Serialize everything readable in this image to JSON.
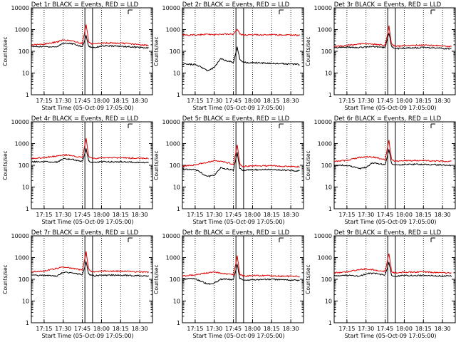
{
  "figure": {
    "colors": {
      "events": "#000000",
      "lld": "#e00000",
      "axis": "#000000",
      "background": "#ffffff"
    }
  },
  "chart_data": [
    {
      "type": "line",
      "title": "Det 1r BLACK = Events, RED = LLD",
      "ylabel": "Counts/sec",
      "xlabel": "Start Time (05-Oct-09 17:05:00)",
      "x_tick_labels": [
        "17:15",
        "17:30",
        "17:45",
        "18:00",
        "18:15",
        "18:30"
      ],
      "y_tick_labels": [
        "1",
        "10",
        "100",
        "1000",
        "10000"
      ],
      "y_scale": "log",
      "ylim": [
        1,
        10000
      ],
      "x": [
        "17:05",
        "17:14",
        "17:25",
        "17:30",
        "17:35",
        "17:39",
        "17:45",
        "17:48",
        "17:50",
        "17:52",
        "17:55",
        "18:00",
        "18:10",
        "18:20",
        "18:30",
        "18:37"
      ],
      "series": [
        {
          "name": "Events",
          "color": "#000000",
          "values": [
            165,
            165,
            160,
            240,
            230,
            210,
            160,
            520,
            170,
            155,
            150,
            175,
            175,
            165,
            150,
            140
          ]
        },
        {
          "name": "LLD",
          "color": "#e00000",
          "values": [
            195,
            210,
            270,
            330,
            310,
            280,
            230,
            1800,
            270,
            220,
            210,
            240,
            240,
            230,
            200,
            190
          ]
        }
      ]
    },
    {
      "type": "line",
      "title": "Det 2r BLACK = Events, RED = LLD",
      "ylabel": "Counts/sec",
      "xlabel": "Start Time (05-Oct-09 17:05:00)",
      "x_tick_labels": [
        "17:15",
        "17:30",
        "17:45",
        "18:00",
        "18:15",
        "18:30"
      ],
      "y_tick_labels": [
        "1",
        "10",
        "100",
        "1000",
        "10000"
      ],
      "y_scale": "log",
      "ylim": [
        1,
        10000
      ],
      "x": [
        "17:05",
        "17:15",
        "17:25",
        "17:30",
        "17:35",
        "17:39",
        "17:45",
        "17:48",
        "17:50",
        "17:52",
        "17:55",
        "18:00",
        "18:15",
        "18:37"
      ],
      "series": [
        {
          "name": "Events",
          "color": "#000000",
          "values": [
            25,
            25,
            13,
            18,
            45,
            38,
            30,
            160,
            45,
            32,
            30,
            30,
            28,
            25
          ]
        },
        {
          "name": "LLD",
          "color": "#e00000",
          "values": [
            550,
            570,
            600,
            580,
            590,
            620,
            600,
            1000,
            640,
            580,
            560,
            580,
            570,
            550
          ]
        }
      ]
    },
    {
      "type": "line",
      "title": "Det 3r BLACK = Events, RED = LLD",
      "ylabel": "Counts/sec",
      "xlabel": "Start Time (05-Oct-09 17:05:00)",
      "x_tick_labels": [
        "17:15",
        "17:30",
        "17:45",
        "18:00",
        "18:15",
        "18:30"
      ],
      "y_tick_labels": [
        "1",
        "10",
        "100",
        "1000",
        "10000"
      ],
      "y_scale": "log",
      "ylim": [
        1,
        10000
      ],
      "x": [
        "17:05",
        "17:15",
        "17:25",
        "17:30",
        "17:35",
        "17:39",
        "17:45",
        "17:48",
        "17:50",
        "17:52",
        "17:55",
        "18:00",
        "18:15",
        "18:37"
      ],
      "series": [
        {
          "name": "Events",
          "color": "#000000",
          "values": [
            150,
            155,
            150,
            160,
            165,
            160,
            150,
            700,
            170,
            140,
            135,
            140,
            150,
            130
          ]
        },
        {
          "name": "LLD",
          "color": "#e00000",
          "values": [
            165,
            185,
            220,
            225,
            215,
            200,
            190,
            1500,
            220,
            175,
            170,
            185,
            195,
            165
          ]
        }
      ]
    },
    {
      "type": "line",
      "title": "Det 4r BLACK = Events, RED = LLD",
      "ylabel": "Counts/sec",
      "xlabel": "Start Time (05-Oct-09 17:05:00)",
      "x_tick_labels": [
        "17:15",
        "17:30",
        "17:45",
        "18:00",
        "18:15",
        "18:30"
      ],
      "y_tick_labels": [
        "1",
        "10",
        "100",
        "1000",
        "10000"
      ],
      "y_scale": "log",
      "ylim": [
        1,
        10000
      ],
      "x": [
        "17:05",
        "17:15",
        "17:25",
        "17:30",
        "17:35",
        "17:39",
        "17:45",
        "17:48",
        "17:50",
        "17:52",
        "17:55",
        "18:00",
        "18:15",
        "18:37"
      ],
      "series": [
        {
          "name": "Events",
          "color": "#000000",
          "values": [
            145,
            145,
            140,
            200,
            190,
            180,
            150,
            560,
            160,
            140,
            135,
            145,
            145,
            130
          ]
        },
        {
          "name": "LLD",
          "color": "#e00000",
          "values": [
            205,
            225,
            270,
            300,
            290,
            260,
            230,
            1700,
            260,
            215,
            200,
            225,
            220,
            205
          ]
        }
      ]
    },
    {
      "type": "line",
      "title": "Det 5r BLACK = Events, RED = LLD",
      "ylabel": "Counts/sec",
      "xlabel": "Start Time (05-Oct-09 17:05:00)",
      "x_tick_labels": [
        "17:15",
        "17:30",
        "17:45",
        "18:00",
        "18:15",
        "18:30"
      ],
      "y_tick_labels": [
        "1",
        "10",
        "100",
        "1000",
        "10000"
      ],
      "y_scale": "log",
      "ylim": [
        1,
        10000
      ],
      "x": [
        "17:05",
        "17:15",
        "17:25",
        "17:30",
        "17:35",
        "17:39",
        "17:45",
        "17:48",
        "17:50",
        "17:52",
        "17:55",
        "18:00",
        "18:15",
        "18:37"
      ],
      "series": [
        {
          "name": "Events",
          "color": "#000000",
          "values": [
            65,
            65,
            30,
            35,
            75,
            70,
            60,
            400,
            70,
            60,
            60,
            62,
            65,
            55
          ]
        },
        {
          "name": "LLD",
          "color": "#e00000",
          "values": [
            90,
            105,
            140,
            165,
            155,
            140,
            110,
            900,
            115,
            90,
            90,
            95,
            95,
            85
          ]
        }
      ]
    },
    {
      "type": "line",
      "title": "Det 6r BLACK = Events, RED = LLD",
      "ylabel": "Counts/sec",
      "xlabel": "Start Time (05-Oct-09 17:05:00)",
      "x_tick_labels": [
        "17:15",
        "17:30",
        "17:45",
        "18:00",
        "18:15",
        "18:30"
      ],
      "y_tick_labels": [
        "1",
        "10",
        "100",
        "1000",
        "10000"
      ],
      "y_scale": "log",
      "ylim": [
        1,
        10000
      ],
      "x": [
        "17:05",
        "17:15",
        "17:25",
        "17:30",
        "17:35",
        "17:39",
        "17:45",
        "17:48",
        "17:50",
        "17:52",
        "17:55",
        "18:00",
        "18:15",
        "18:37"
      ],
      "series": [
        {
          "name": "Events",
          "color": "#000000",
          "values": [
            100,
            100,
            70,
            80,
            130,
            120,
            110,
            550,
            120,
            105,
            100,
            110,
            110,
            100
          ]
        },
        {
          "name": "LLD",
          "color": "#e00000",
          "values": [
            150,
            170,
            230,
            250,
            240,
            220,
            180,
            1400,
            190,
            160,
            150,
            165,
            165,
            150
          ]
        }
      ]
    },
    {
      "type": "line",
      "title": "Det 7r BLACK = Events, RED = LLD",
      "ylabel": "Counts/sec",
      "xlabel": "Start Time (05-Oct-09 17:05:00)",
      "x_tick_labels": [
        "17:15",
        "17:30",
        "17:45",
        "18:00",
        "18:15",
        "18:30"
      ],
      "y_tick_labels": [
        "1",
        "10",
        "100",
        "1000",
        "10000"
      ],
      "y_scale": "log",
      "ylim": [
        1,
        10000
      ],
      "x": [
        "17:05",
        "17:15",
        "17:25",
        "17:30",
        "17:35",
        "17:39",
        "17:45",
        "17:48",
        "17:50",
        "17:52",
        "17:55",
        "18:00",
        "18:15",
        "18:37"
      ],
      "series": [
        {
          "name": "Events",
          "color": "#000000",
          "values": [
            150,
            150,
            140,
            210,
            200,
            190,
            160,
            620,
            170,
            150,
            145,
            155,
            155,
            140
          ]
        },
        {
          "name": "LLD",
          "color": "#e00000",
          "values": [
            220,
            240,
            320,
            360,
            340,
            310,
            260,
            1800,
            290,
            230,
            225,
            240,
            240,
            210
          ]
        }
      ]
    },
    {
      "type": "line",
      "title": "Det 8r BLACK = Events, RED = LLD",
      "ylabel": "Counts/sec",
      "xlabel": "Start Time (05-Oct-09 17:05:00)",
      "x_tick_labels": [
        "17:15",
        "17:30",
        "17:45",
        "18:00",
        "18:15",
        "18:30"
      ],
      "y_tick_labels": [
        "1",
        "10",
        "100",
        "1000",
        "10000"
      ],
      "y_scale": "log",
      "ylim": [
        1,
        10000
      ],
      "x": [
        "17:05",
        "17:15",
        "17:25",
        "17:30",
        "17:35",
        "17:39",
        "17:45",
        "17:48",
        "17:50",
        "17:52",
        "17:55",
        "18:00",
        "18:15",
        "18:37"
      ],
      "series": [
        {
          "name": "Events",
          "color": "#000000",
          "values": [
            105,
            105,
            60,
            65,
            100,
            105,
            95,
            500,
            110,
            95,
            90,
            95,
            100,
            90
          ]
        },
        {
          "name": "LLD",
          "color": "#e00000",
          "values": [
            140,
            160,
            200,
            210,
            190,
            175,
            160,
            1200,
            170,
            150,
            140,
            150,
            145,
            135
          ]
        }
      ]
    },
    {
      "type": "line",
      "title": "Det 9r BLACK = Events, RED = LLD",
      "ylabel": "Counts/sec",
      "xlabel": "Start Time (05-Oct-09 17:05:00)",
      "x_tick_labels": [
        "17:15",
        "17:30",
        "17:45",
        "18:00",
        "18:15",
        "18:30"
      ],
      "y_tick_labels": [
        "1",
        "10",
        "100",
        "1000",
        "10000"
      ],
      "y_scale": "log",
      "ylim": [
        1,
        10000
      ],
      "x": [
        "17:05",
        "17:15",
        "17:25",
        "17:30",
        "17:35",
        "17:39",
        "17:45",
        "17:48",
        "17:50",
        "17:52",
        "17:55",
        "18:00",
        "18:15",
        "18:37"
      ],
      "series": [
        {
          "name": "Events",
          "color": "#000000",
          "values": [
            150,
            150,
            140,
            180,
            190,
            180,
            155,
            600,
            160,
            140,
            140,
            150,
            150,
            140
          ]
        },
        {
          "name": "LLD",
          "color": "#e00000",
          "values": [
            200,
            220,
            280,
            300,
            280,
            260,
            230,
            1600,
            240,
            200,
            195,
            215,
            220,
            190
          ]
        }
      ]
    }
  ]
}
